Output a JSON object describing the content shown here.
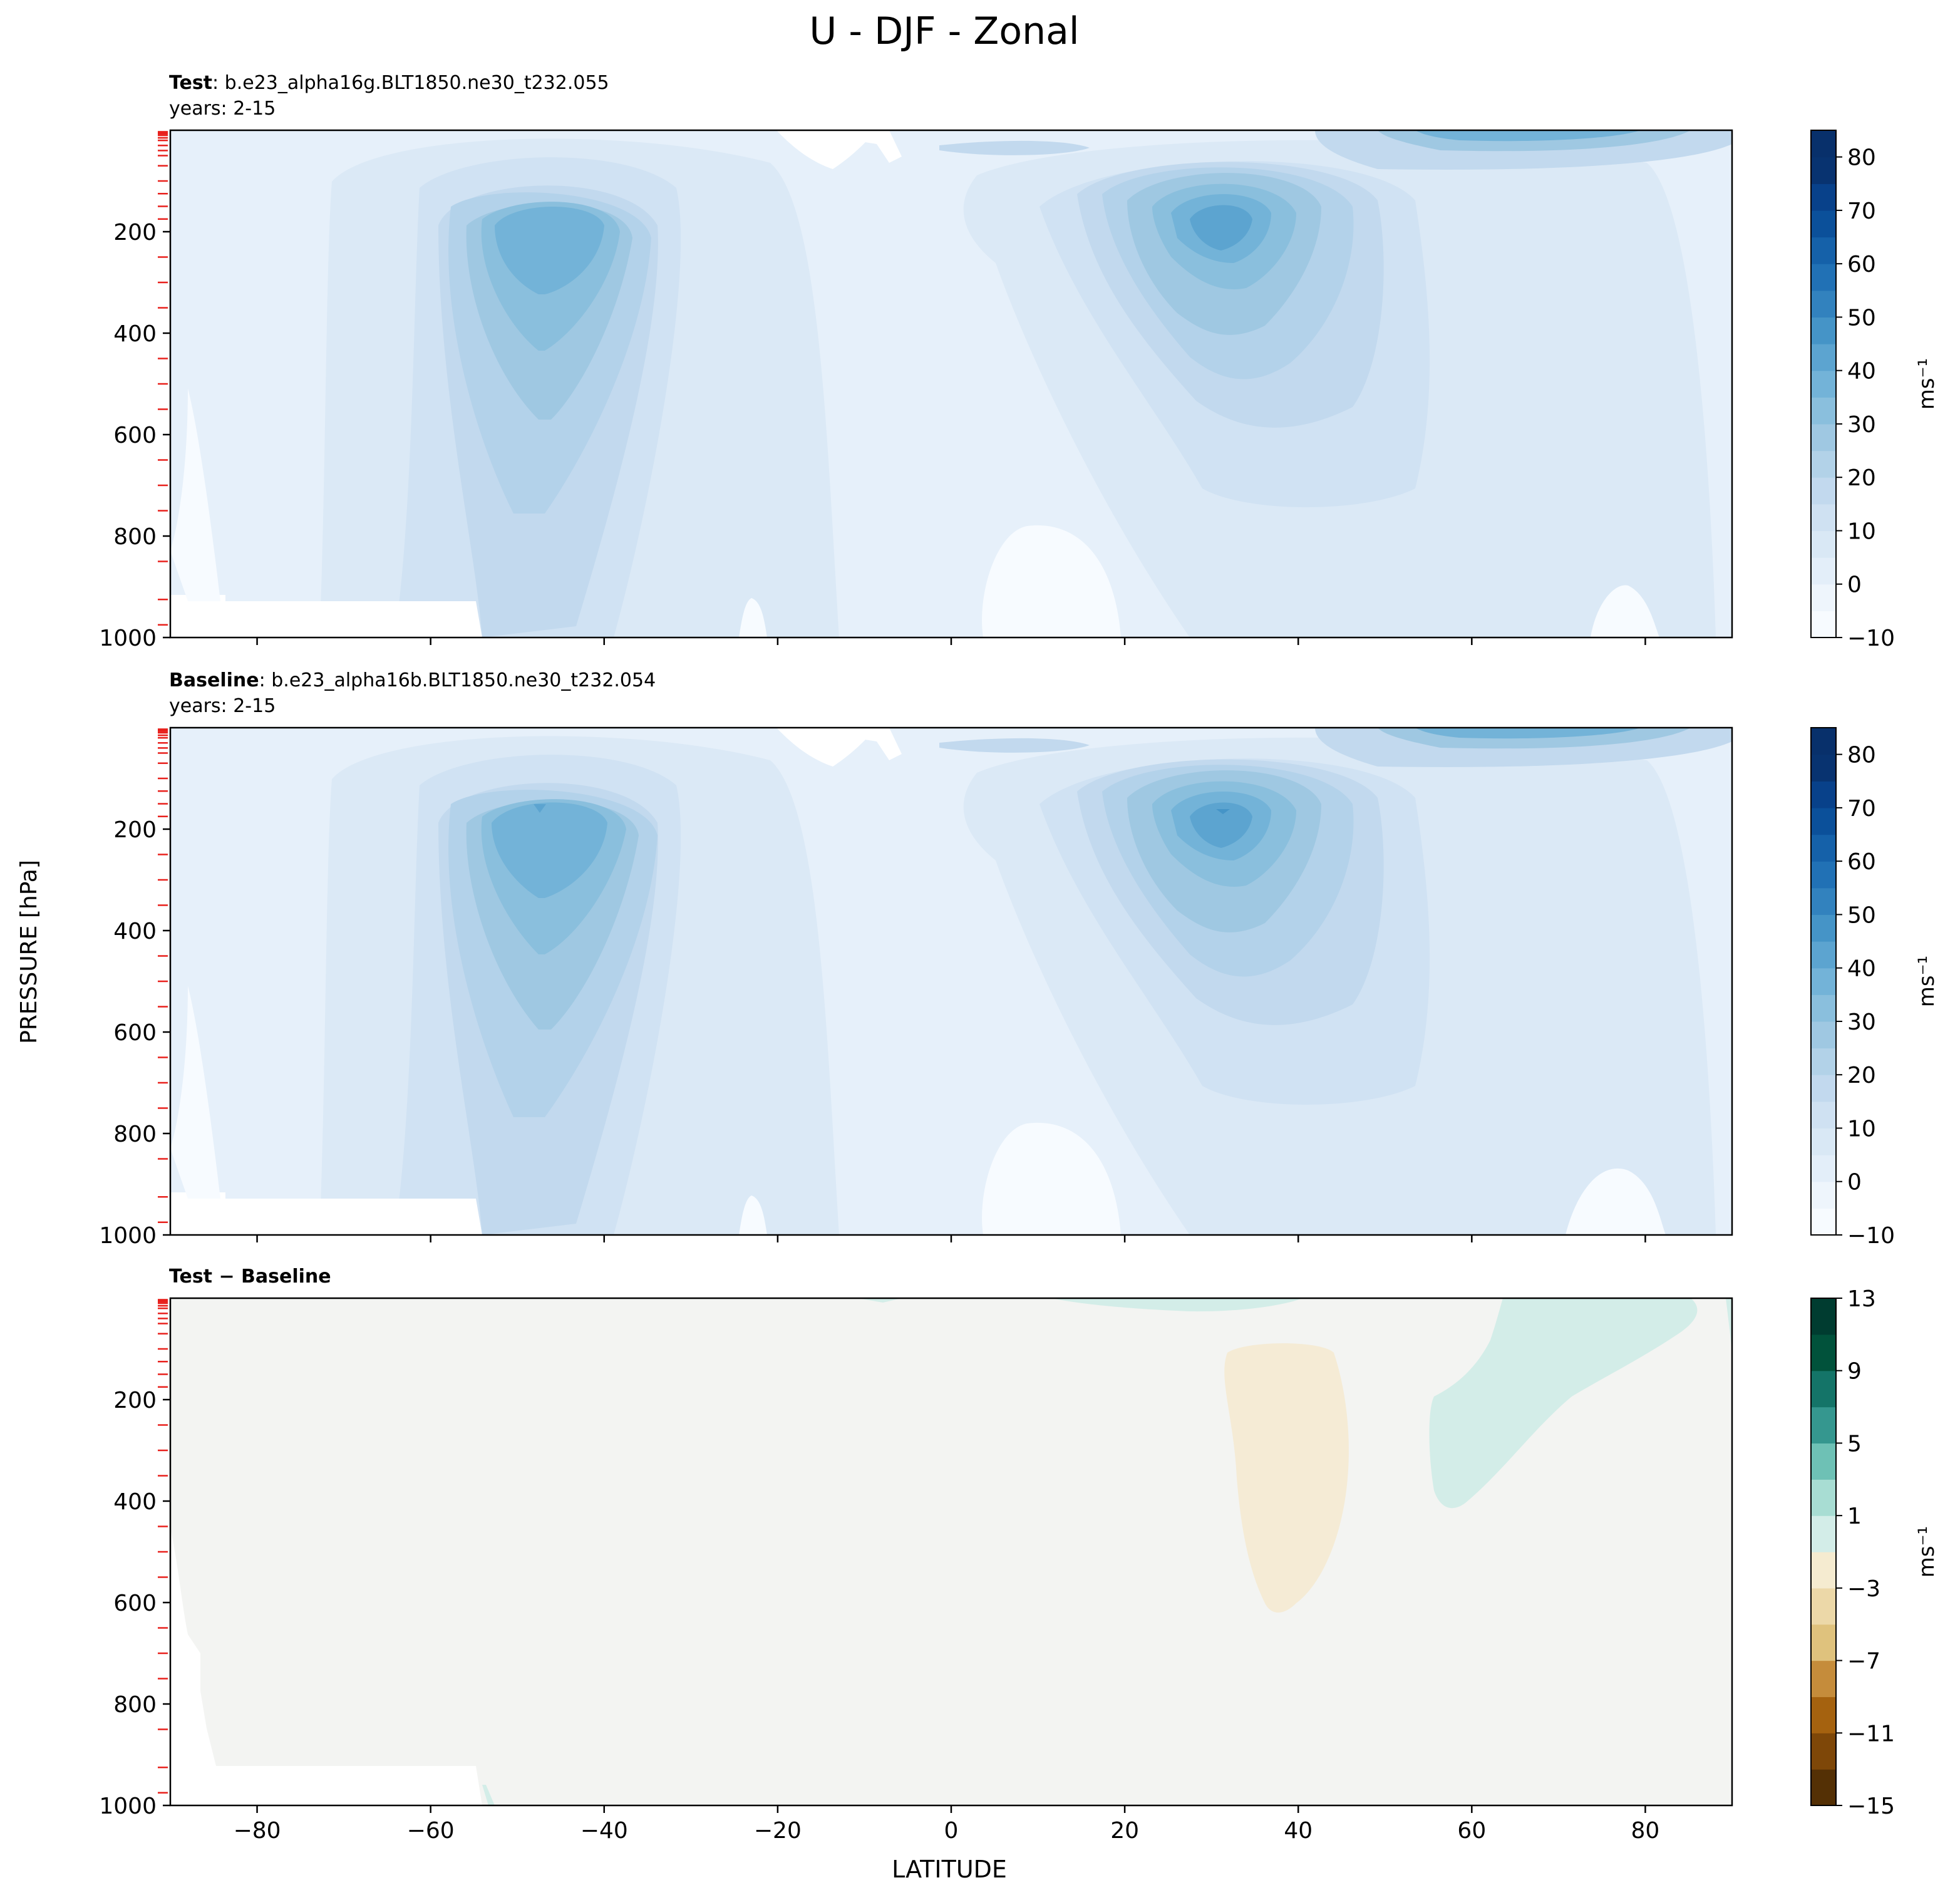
{
  "figure": {
    "title": "U - DJF - Zonal",
    "xlabel": "LATITUDE",
    "ylabel": "PRESSURE [hPa]"
  },
  "chart_data": [
    {
      "type": "contour",
      "panel": "test",
      "label_bold": "Test",
      "label_rest": ": b.e23_alpha16g.BLT1850.ne30_t232.055",
      "years": "years: 2-15",
      "xlim": [
        -90,
        90
      ],
      "ylim": [
        1000,
        0
      ],
      "xticks": [
        -80,
        -60,
        -40,
        -20,
        0,
        20,
        40,
        60,
        80
      ],
      "yticks": [
        200,
        400,
        600,
        800,
        1000
      ],
      "cbar": {
        "label": "ms⁻¹",
        "min": -10,
        "max": 85,
        "ticks": [
          "−10",
          "0",
          "10",
          "20",
          "30",
          "40",
          "50",
          "60",
          "70",
          "80"
        ],
        "tick_values": [
          -10,
          0,
          10,
          20,
          30,
          40,
          50,
          60,
          70,
          80
        ],
        "levels": [
          -10,
          -5,
          0,
          5,
          10,
          15,
          20,
          25,
          30,
          35,
          40,
          45,
          50,
          55,
          60,
          65,
          70,
          75,
          80,
          85
        ]
      },
      "features": [
        {
          "name": "SH subtropical jet",
          "lat": -47,
          "p": 230,
          "max": 40
        },
        {
          "name": "NH subtropical jet",
          "lat": 30,
          "p": 200,
          "max": 45
        },
        {
          "name": "NH polar night jet",
          "lat": 65,
          "p": 5,
          "max": 40
        },
        {
          "name": "tropical easterlies",
          "lat": 5,
          "p": 900,
          "max": -5
        }
      ]
    },
    {
      "type": "contour",
      "panel": "baseline",
      "label_bold": "Baseline",
      "label_rest": ": b.e23_alpha16b.BLT1850.ne30_t232.054",
      "years": "years: 2-15",
      "xlim": [
        -90,
        90
      ],
      "ylim": [
        1000,
        0
      ],
      "xticks": [
        -80,
        -60,
        -40,
        -20,
        0,
        20,
        40,
        60,
        80
      ],
      "yticks": [
        200,
        400,
        600,
        800,
        1000
      ],
      "cbar": {
        "label": "ms⁻¹",
        "min": -10,
        "max": 85,
        "ticks": [
          "−10",
          "0",
          "10",
          "20",
          "30",
          "40",
          "50",
          "60",
          "70",
          "80"
        ],
        "tick_values": [
          -10,
          0,
          10,
          20,
          30,
          40,
          50,
          60,
          70,
          80
        ],
        "levels": [
          -10,
          -5,
          0,
          5,
          10,
          15,
          20,
          25,
          30,
          35,
          40,
          45,
          50,
          55,
          60,
          65,
          70,
          75,
          80,
          85
        ]
      },
      "features": [
        {
          "name": "SH subtropical jet",
          "lat": -47,
          "p": 220,
          "max": 42
        },
        {
          "name": "NH subtropical jet",
          "lat": 30,
          "p": 200,
          "max": 46
        },
        {
          "name": "NH polar night jet",
          "lat": 65,
          "p": 5,
          "max": 40
        },
        {
          "name": "tropical easterlies",
          "lat": 5,
          "p": 900,
          "max": -5
        }
      ]
    },
    {
      "type": "contour",
      "panel": "diff",
      "label_bold": "Test − Baseline",
      "label_rest": "",
      "years": "",
      "xlim": [
        -90,
        90
      ],
      "ylim": [
        1000,
        0
      ],
      "xticks": [
        -80,
        -60,
        -40,
        -20,
        0,
        20,
        40,
        60,
        80
      ],
      "xticklabels": [
        "−80",
        "−60",
        "−40",
        "−20",
        "0",
        "20",
        "40",
        "60",
        "80"
      ],
      "yticks": [
        200,
        400,
        600,
        800,
        1000
      ],
      "cbar": {
        "label": "ms⁻¹",
        "min": -15,
        "max": 13,
        "ticks": [
          "−15",
          "−11",
          "−7",
          "−3",
          "1",
          "5",
          "9",
          "13"
        ],
        "tick_values": [
          -15,
          -11,
          -7,
          -3,
          1,
          5,
          9,
          13
        ],
        "levels": [
          -15,
          -13,
          -11,
          -9,
          -7,
          -5,
          -3,
          -1,
          1,
          3,
          5,
          7,
          9,
          11,
          13
        ]
      },
      "features": [
        {
          "name": "negative anomaly",
          "lat": 38,
          "p": 300,
          "range": [
            -3,
            -1
          ]
        },
        {
          "name": "positive anomaly",
          "lat": 65,
          "p": 150,
          "range": [
            1,
            3
          ]
        },
        {
          "name": "positive anomaly (upper)",
          "lat": 20,
          "p": 5,
          "range": [
            1,
            3
          ]
        }
      ]
    }
  ],
  "pressure_levels_marks": [
    3,
    5,
    7,
    10,
    15,
    20,
    30,
    40,
    50,
    70,
    100,
    125,
    150,
    175,
    250,
    300,
    350,
    450,
    500,
    550,
    650,
    700,
    750,
    850,
    925,
    975
  ],
  "colors": {
    "blues": [
      "#f7fbff",
      "#eef5fc",
      "#e3eef9",
      "#d9e8f5",
      "#cfe1f2",
      "#c2d9ee",
      "#b2d2e8",
      "#9fc8e2",
      "#8abfdd",
      "#73b3d8",
      "#5ca4d0",
      "#4594c7",
      "#3282be",
      "#2171b5",
      "#1561a9",
      "#0b509a",
      "#08418a",
      "#083370",
      "#08306b"
    ],
    "brbg_neg": [
      "#543005",
      "#7e4708",
      "#a5620f",
      "#c58c3b",
      "#dfc27d",
      "#ecd8a8",
      "#f5ebd0"
    ],
    "brbg_mid": "#f3f4f2",
    "brbg_pos": [
      "#d3ede8",
      "#a8ddd3",
      "#6ec1b5",
      "#35978f",
      "#147468",
      "#01523b",
      "#003c30"
    ],
    "mark": "#e8201c"
  }
}
